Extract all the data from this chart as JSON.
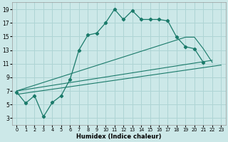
{
  "xlabel": "Humidex (Indice chaleur)",
  "background_color": "#cce8e8",
  "grid_color": "#aed4d4",
  "line_color": "#1a7a6a",
  "xlim": [
    -0.5,
    23.5
  ],
  "ylim": [
    2.0,
    20.0
  ],
  "xticks": [
    0,
    1,
    2,
    3,
    4,
    5,
    6,
    7,
    8,
    9,
    10,
    11,
    12,
    13,
    14,
    15,
    16,
    17,
    18,
    19,
    20,
    21,
    22,
    23
  ],
  "yticks": [
    3,
    5,
    7,
    9,
    11,
    13,
    15,
    17,
    19
  ],
  "main_x": [
    0,
    1,
    2,
    3,
    4,
    5,
    6,
    7,
    8,
    9,
    10,
    11,
    12,
    13,
    14,
    15,
    16,
    17,
    18,
    19,
    20,
    21
  ],
  "main_y": [
    6.8,
    5.2,
    6.3,
    3.2,
    5.3,
    6.3,
    8.7,
    13.0,
    15.2,
    15.5,
    17.0,
    19.0,
    17.5,
    18.8,
    17.5,
    17.5,
    17.5,
    17.3,
    14.9,
    13.5,
    13.2,
    11.2
  ],
  "upper_line_x": [
    0,
    19,
    20,
    21,
    22
  ],
  "upper_line_y": [
    7.0,
    14.9,
    14.9,
    13.2,
    11.2
  ],
  "mid_line_x": [
    0,
    22
  ],
  "mid_line_y": [
    7.0,
    11.5
  ],
  "low_line_x": [
    0,
    23
  ],
  "low_line_y": [
    6.5,
    10.8
  ]
}
